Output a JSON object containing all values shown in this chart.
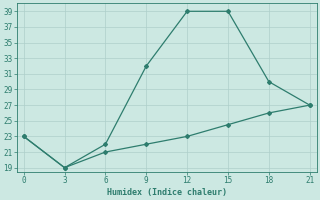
{
  "line1_x": [
    0,
    3,
    6,
    9,
    12,
    15,
    18,
    21
  ],
  "line1_y": [
    23,
    19,
    22,
    32,
    39,
    39,
    30,
    27
  ],
  "line2_x": [
    0,
    3,
    6,
    9,
    12,
    15,
    18,
    21
  ],
  "line2_y": [
    23,
    19,
    21,
    22,
    23,
    24.5,
    26,
    27
  ],
  "line_color": "#2e7d6e",
  "bg_color": "#cce8e2",
  "grid_color": "#aecfca",
  "xlabel": "Humidex (Indice chaleur)",
  "xlim": [
    -0.5,
    21.5
  ],
  "ylim": [
    18.5,
    40
  ],
  "xticks": [
    0,
    3,
    6,
    9,
    12,
    15,
    18,
    21
  ],
  "yticks": [
    19,
    21,
    23,
    25,
    27,
    29,
    31,
    33,
    35,
    37,
    39
  ],
  "marker": "D",
  "marker_size": 2.0,
  "line_width": 0.9
}
